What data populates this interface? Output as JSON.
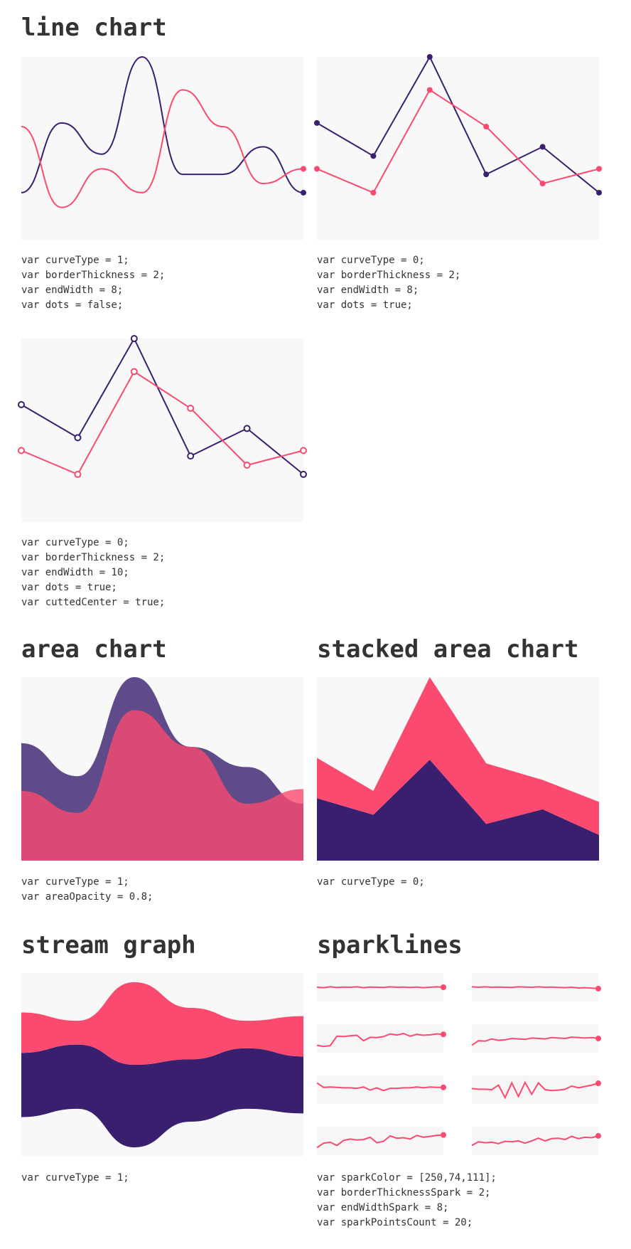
{
  "colors": {
    "primary": "#3a1f6e",
    "accent": "#fa4a6f",
    "panel_bg": "#f8f8f8"
  },
  "sections": {
    "line": {
      "title": "line chart",
      "code_1": [
        "var curveType = 1;",
        "var borderThickness = 2;",
        "var endWidth = 8;",
        "var dots = false;"
      ],
      "code_2": [
        "var curveType = 0;",
        "var borderThickness = 2;",
        "var endWidth = 8;",
        "var dots = true;"
      ],
      "code_3": [
        "var curveType = 0;",
        "var borderThickness = 2;",
        "var endWidth = 10;",
        "var dots = true;",
        "var cuttedCenter = true;"
      ]
    },
    "area": {
      "title": "area chart",
      "code": [
        "var curveType = 1;",
        "var areaOpacity = 0.8;"
      ]
    },
    "stacked": {
      "title": "stacked area chart",
      "code": [
        "var curveType = 0;"
      ]
    },
    "stream": {
      "title": "stream graph",
      "code": [
        "var curveType = 1;"
      ]
    },
    "spark": {
      "title": "sparklines",
      "code": [
        "var sparkColor = [250,74,111];",
        "var borderThicknessSpark = 2;",
        "var endWidthSpark = 8;",
        "var sparkPointsCount = 20;"
      ]
    }
  },
  "chart_data": [
    {
      "type": "line",
      "curve": "smooth",
      "dots": false,
      "ylim": [
        0,
        100
      ],
      "series": [
        {
          "color": "primary",
          "values": [
            26,
            64,
            47,
            100,
            36,
            36,
            51,
            26
          ]
        },
        {
          "color": "accent",
          "values": [
            62,
            18,
            39,
            26,
            82,
            62,
            31,
            39
          ]
        }
      ]
    },
    {
      "type": "line",
      "curve": "linear",
      "dots": "filled",
      "ylim": [
        0,
        100
      ],
      "series": [
        {
          "color": "primary",
          "values": [
            64,
            46,
            100,
            36,
            51,
            26
          ]
        },
        {
          "color": "accent",
          "values": [
            39,
            26,
            82,
            62,
            31,
            39
          ]
        }
      ]
    },
    {
      "type": "line",
      "curve": "linear",
      "dots": "hollow",
      "ylim": [
        0,
        100
      ],
      "series": [
        {
          "color": "primary",
          "values": [
            64,
            46,
            100,
            36,
            51,
            26
          ]
        },
        {
          "color": "accent",
          "values": [
            39,
            26,
            82,
            62,
            31,
            39
          ]
        }
      ]
    },
    {
      "type": "area",
      "curve": "smooth",
      "opacity": 0.8,
      "ylim": [
        0,
        100
      ],
      "series": [
        {
          "color": "primary",
          "values": [
            64,
            46,
            100,
            62,
            51,
            31
          ]
        },
        {
          "color": "accent",
          "values": [
            38,
            26,
            82,
            62,
            31,
            39
          ]
        }
      ]
    },
    {
      "type": "area",
      "stacked": true,
      "curve": "linear",
      "ylim": [
        0,
        100
      ],
      "series": [
        {
          "color": "primary",
          "values": [
            34,
            25,
            55,
            20,
            28,
            14
          ]
        },
        {
          "color": "accent",
          "values": [
            22,
            13,
            45,
            33,
            16,
            18
          ]
        }
      ]
    },
    {
      "type": "area",
      "stream": true,
      "curve": "smooth",
      "ylim": [
        0,
        100
      ],
      "series": [
        {
          "color": "primary",
          "values": [
            35,
            35,
            45,
            34,
            33,
            31
          ]
        },
        {
          "color": "accent",
          "values": [
            22,
            13,
            45,
            28,
            15,
            22
          ]
        }
      ]
    },
    {
      "type": "line",
      "sparklines": true,
      "series": [
        {
          "values": [
            50,
            48,
            52,
            49,
            51,
            50,
            52,
            48,
            51,
            50,
            49,
            52,
            50,
            51,
            49,
            51,
            48,
            50,
            52,
            50
          ]
        },
        {
          "values": [
            52,
            50,
            52,
            50,
            51,
            50,
            49,
            52,
            51,
            50,
            52,
            50,
            51,
            49,
            48,
            50,
            47,
            48,
            46,
            44
          ]
        },
        {
          "values": [
            20,
            15,
            18,
            60,
            58,
            62,
            64,
            40,
            55,
            54,
            58,
            70,
            65,
            72,
            60,
            68,
            64,
            66,
            70,
            68
          ]
        },
        {
          "values": [
            20,
            40,
            38,
            48,
            42,
            44,
            50,
            48,
            46,
            52,
            50,
            48,
            54,
            52,
            50,
            56,
            54,
            52,
            54,
            50
          ]
        },
        {
          "values": [
            80,
            60,
            62,
            60,
            58,
            58,
            56,
            62,
            48,
            58,
            46,
            56,
            56,
            58,
            58,
            62,
            58,
            62,
            60,
            60
          ]
        },
        {
          "values": [
            55,
            52,
            52,
            50,
            70,
            15,
            80,
            20,
            82,
            30,
            80,
            50,
            46,
            48,
            52,
            66,
            58,
            64,
            70,
            78
          ]
        },
        {
          "values": [
            20,
            40,
            44,
            30,
            52,
            58,
            54,
            56,
            66,
            42,
            48,
            72,
            62,
            64,
            58,
            74,
            66,
            70,
            74,
            76
          ]
        },
        {
          "values": [
            30,
            46,
            42,
            44,
            38,
            48,
            46,
            50,
            40,
            50,
            62,
            50,
            60,
            62,
            56,
            70,
            60,
            66,
            64,
            72
          ]
        }
      ]
    }
  ]
}
